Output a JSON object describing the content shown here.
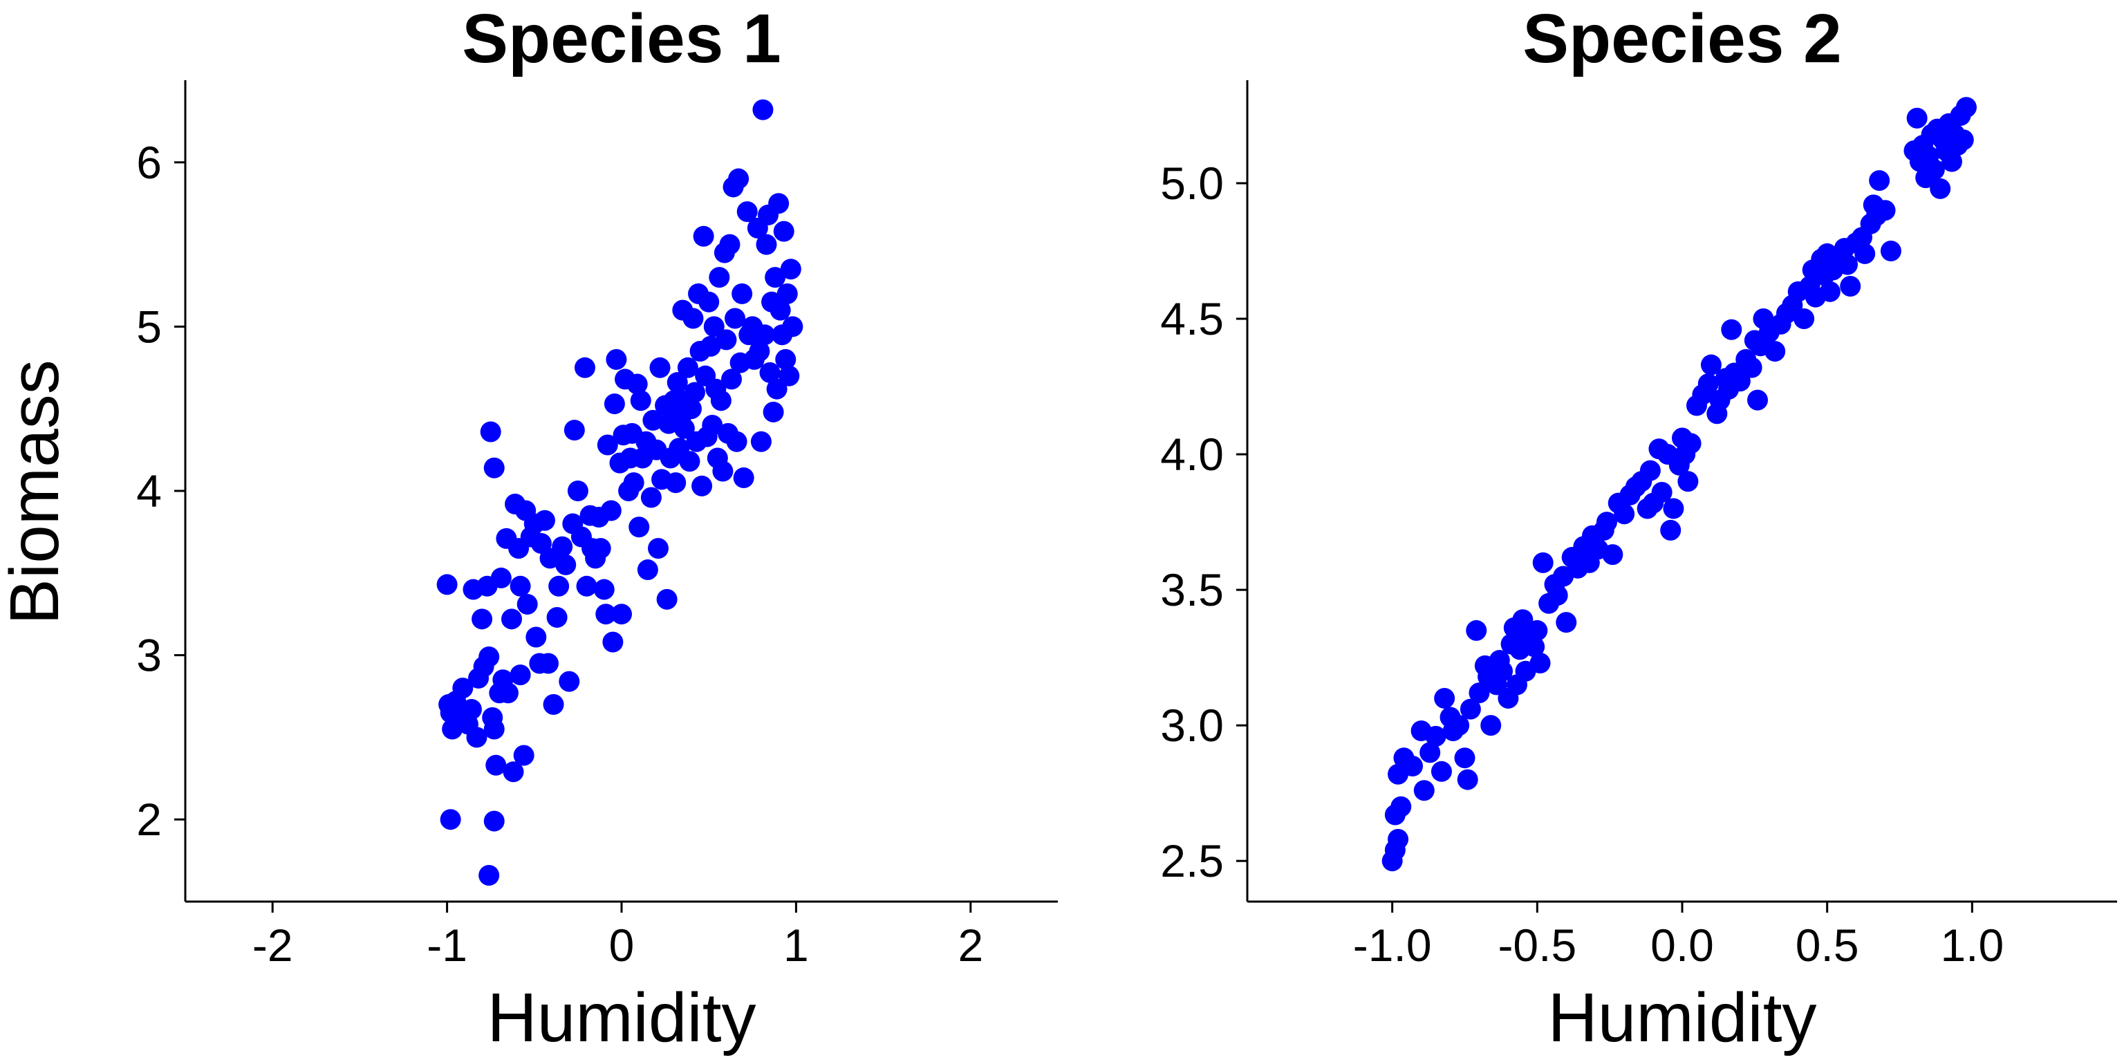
{
  "figure": {
    "ylabel": "Biomass"
  },
  "chart_data": [
    {
      "type": "scatter",
      "title": "Species 1",
      "xlabel": "Humidity",
      "ylabel": "Biomass",
      "xlim": [
        -2.5,
        2.5
      ],
      "ylim": [
        1.5,
        6.5
      ],
      "xticks": [
        -2,
        -1,
        0,
        1,
        2
      ],
      "xtick_labels": [
        "-2",
        "-1",
        "0",
        "1",
        "2"
      ],
      "yticks": [
        2,
        3,
        4,
        5,
        6
      ],
      "ytick_labels": [
        "2",
        "3",
        "4",
        "5",
        "6"
      ],
      "grid": false,
      "marker_color": "#0000ff",
      "points": [
        [
          -1.0,
          3.43
        ],
        [
          -0.99,
          2.7
        ],
        [
          -0.98,
          2.65
        ],
        [
          -0.97,
          2.55
        ],
        [
          -0.95,
          2.72
        ],
        [
          -0.93,
          2.62
        ],
        [
          -0.91,
          2.8
        ],
        [
          -0.88,
          2.58
        ],
        [
          -0.86,
          2.67
        ],
        [
          -0.85,
          3.4
        ],
        [
          -0.83,
          2.5
        ],
        [
          -0.82,
          2.86
        ],
        [
          -0.8,
          3.22
        ],
        [
          -0.79,
          2.93
        ],
        [
          -0.77,
          3.42
        ],
        [
          -0.76,
          2.99
        ],
        [
          -0.74,
          2.62
        ],
        [
          -0.73,
          2.55
        ],
        [
          -0.72,
          2.33
        ],
        [
          -0.7,
          2.77
        ],
        [
          -0.69,
          3.47
        ],
        [
          -0.68,
          2.85
        ],
        [
          -0.66,
          3.71
        ],
        [
          -0.65,
          2.77
        ],
        [
          -0.63,
          3.22
        ],
        [
          -0.62,
          2.29
        ],
        [
          -0.61,
          3.92
        ],
        [
          -0.59,
          3.65
        ],
        [
          -0.58,
          2.88
        ],
        [
          -0.56,
          2.39
        ],
        [
          -0.55,
          3.88
        ],
        [
          -0.54,
          3.31
        ],
        [
          -0.52,
          3.72
        ],
        [
          -0.5,
          3.8
        ],
        [
          -0.49,
          3.11
        ],
        [
          -0.47,
          2.95
        ],
        [
          -0.46,
          3.68
        ],
        [
          -0.44,
          3.82
        ],
        [
          -0.42,
          2.95
        ],
        [
          -0.41,
          3.59
        ],
        [
          -0.39,
          2.7
        ],
        [
          -0.37,
          3.23
        ],
        [
          -0.36,
          3.42
        ],
        [
          -0.34,
          3.66
        ],
        [
          -0.32,
          3.55
        ],
        [
          -0.3,
          2.84
        ],
        [
          -0.28,
          3.8
        ],
        [
          -0.27,
          4.37
        ],
        [
          -0.25,
          4.0
        ],
        [
          -0.23,
          3.72
        ],
        [
          -0.21,
          4.75
        ],
        [
          -0.2,
          3.42
        ],
        [
          -0.18,
          3.85
        ],
        [
          -0.17,
          3.65
        ],
        [
          -0.15,
          3.59
        ],
        [
          -0.13,
          3.84
        ],
        [
          -0.12,
          3.65
        ],
        [
          -0.1,
          3.4
        ],
        [
          -0.09,
          3.25
        ],
        [
          -0.08,
          4.28
        ],
        [
          -0.06,
          3.88
        ],
        [
          -0.05,
          3.08
        ],
        [
          -0.04,
          4.53
        ],
        [
          -0.03,
          4.8
        ],
        [
          -0.01,
          4.17
        ],
        [
          0.0,
          3.25
        ],
        [
          0.01,
          4.34
        ],
        [
          0.02,
          4.68
        ],
        [
          0.04,
          4.0
        ],
        [
          0.05,
          4.2
        ],
        [
          0.06,
          4.35
        ],
        [
          0.07,
          4.05
        ],
        [
          0.09,
          4.65
        ],
        [
          0.1,
          3.78
        ],
        [
          0.11,
          4.55
        ],
        [
          0.12,
          4.2
        ],
        [
          0.14,
          4.3
        ],
        [
          0.15,
          3.52
        ],
        [
          0.17,
          3.96
        ],
        [
          0.18,
          4.43
        ],
        [
          0.2,
          4.25
        ],
        [
          0.21,
          3.65
        ],
        [
          0.22,
          4.75
        ],
        [
          0.23,
          4.07
        ],
        [
          0.25,
          4.52
        ],
        [
          0.26,
          3.34
        ],
        [
          0.27,
          4.41
        ],
        [
          0.28,
          4.2
        ],
        [
          0.3,
          4.55
        ],
        [
          0.31,
          4.05
        ],
        [
          0.32,
          4.66
        ],
        [
          0.33,
          4.26
        ],
        [
          0.34,
          4.45
        ],
        [
          0.35,
          5.1
        ],
        [
          0.36,
          4.38
        ],
        [
          0.37,
          4.55
        ],
        [
          0.38,
          4.75
        ],
        [
          0.39,
          4.18
        ],
        [
          0.4,
          4.5
        ],
        [
          0.41,
          5.05
        ],
        [
          0.42,
          4.6
        ],
        [
          0.43,
          4.3
        ],
        [
          0.44,
          5.2
        ],
        [
          0.45,
          4.85
        ],
        [
          0.46,
          4.03
        ],
        [
          0.47,
          5.55
        ],
        [
          0.48,
          4.7
        ],
        [
          0.49,
          4.33
        ],
        [
          0.5,
          5.15
        ],
        [
          0.51,
          4.88
        ],
        [
          0.52,
          4.4
        ],
        [
          0.53,
          5.0
        ],
        [
          0.54,
          4.62
        ],
        [
          0.55,
          4.2
        ],
        [
          0.56,
          5.3
        ],
        [
          0.57,
          4.55
        ],
        [
          0.58,
          4.12
        ],
        [
          0.59,
          5.45
        ],
        [
          0.6,
          4.92
        ],
        [
          0.61,
          4.35
        ],
        [
          0.62,
          5.5
        ],
        [
          0.63,
          4.68
        ],
        [
          0.64,
          5.85
        ],
        [
          0.65,
          5.05
        ],
        [
          0.66,
          4.3
        ],
        [
          0.67,
          5.9
        ],
        [
          0.68,
          4.78
        ],
        [
          0.69,
          5.2
        ],
        [
          0.7,
          4.08
        ],
        [
          0.72,
          5.7
        ],
        [
          0.73,
          4.95
        ],
        [
          0.75,
          5.0
        ],
        [
          0.76,
          4.8
        ],
        [
          0.78,
          5.6
        ],
        [
          0.79,
          4.85
        ],
        [
          0.8,
          4.3
        ],
        [
          0.81,
          6.32
        ],
        [
          0.82,
          4.95
        ],
        [
          0.83,
          5.5
        ],
        [
          0.84,
          5.68
        ],
        [
          0.85,
          4.72
        ],
        [
          0.86,
          5.15
        ],
        [
          0.87,
          4.48
        ],
        [
          0.88,
          5.3
        ],
        [
          0.89,
          4.62
        ],
        [
          0.9,
          5.75
        ],
        [
          0.91,
          5.1
        ],
        [
          0.92,
          4.95
        ],
        [
          0.93,
          5.58
        ],
        [
          0.94,
          4.8
        ],
        [
          0.95,
          5.2
        ],
        [
          0.96,
          4.7
        ],
        [
          0.97,
          5.35
        ],
        [
          0.98,
          5.0
        ],
        [
          -0.98,
          2.0
        ],
        [
          -0.73,
          1.99
        ],
        [
          -0.76,
          1.66
        ],
        [
          -0.75,
          4.36
        ],
        [
          -0.73,
          4.14
        ],
        [
          -0.58,
          3.42
        ]
      ]
    },
    {
      "type": "scatter",
      "title": "Species 2",
      "xlabel": "Humidity",
      "ylabel": "",
      "xlim": [
        -1.5,
        1.5
      ],
      "ylim": [
        2.35,
        5.38
      ],
      "xticks": [
        -1.0,
        -0.5,
        0.0,
        0.5,
        1.0
      ],
      "xtick_labels": [
        "-1.0",
        "-0.5",
        "0.0",
        "0.5",
        "1.0"
      ],
      "yticks": [
        2.5,
        3.0,
        3.5,
        4.0,
        4.5,
        5.0
      ],
      "ytick_labels": [
        "2.5",
        "3.0",
        "3.5",
        "4.0",
        "4.5",
        "5.0"
      ],
      "grid": false,
      "marker_color": "#0000ff",
      "points": [
        [
          -1.0,
          2.5
        ],
        [
          -0.99,
          2.54
        ],
        [
          -0.99,
          2.67
        ],
        [
          -0.98,
          2.58
        ],
        [
          -0.98,
          2.82
        ],
        [
          -0.97,
          2.7
        ],
        [
          -0.96,
          2.88
        ],
        [
          -0.93,
          2.85
        ],
        [
          -0.9,
          2.98
        ],
        [
          -0.89,
          2.76
        ],
        [
          -0.87,
          2.9
        ],
        [
          -0.85,
          2.96
        ],
        [
          -0.83,
          2.83
        ],
        [
          -0.82,
          3.1
        ],
        [
          -0.8,
          3.03
        ],
        [
          -0.79,
          2.98
        ],
        [
          -0.77,
          3.0
        ],
        [
          -0.75,
          2.88
        ],
        [
          -0.74,
          2.8
        ],
        [
          -0.73,
          3.06
        ],
        [
          -0.71,
          3.35
        ],
        [
          -0.7,
          3.12
        ],
        [
          -0.68,
          3.22
        ],
        [
          -0.67,
          3.18
        ],
        [
          -0.66,
          3.0
        ],
        [
          -0.64,
          3.15
        ],
        [
          -0.63,
          3.24
        ],
        [
          -0.62,
          3.2
        ],
        [
          -0.6,
          3.1
        ],
        [
          -0.59,
          3.3
        ],
        [
          -0.58,
          3.36
        ],
        [
          -0.57,
          3.15
        ],
        [
          -0.56,
          3.28
        ],
        [
          -0.55,
          3.39
        ],
        [
          -0.54,
          3.2
        ],
        [
          -0.53,
          3.32
        ],
        [
          -0.51,
          3.29
        ],
        [
          -0.5,
          3.35
        ],
        [
          -0.49,
          3.23
        ],
        [
          -0.48,
          3.6
        ],
        [
          -0.46,
          3.45
        ],
        [
          -0.44,
          3.52
        ],
        [
          -0.43,
          3.48
        ],
        [
          -0.41,
          3.55
        ],
        [
          -0.4,
          3.38
        ],
        [
          -0.38,
          3.62
        ],
        [
          -0.36,
          3.58
        ],
        [
          -0.34,
          3.66
        ],
        [
          -0.32,
          3.6
        ],
        [
          -0.31,
          3.7
        ],
        [
          -0.29,
          3.65
        ],
        [
          -0.27,
          3.72
        ],
        [
          -0.26,
          3.75
        ],
        [
          -0.24,
          3.63
        ],
        [
          -0.22,
          3.82
        ],
        [
          -0.2,
          3.78
        ],
        [
          -0.18,
          3.85
        ],
        [
          -0.16,
          3.88
        ],
        [
          -0.14,
          3.9
        ],
        [
          -0.12,
          3.8
        ],
        [
          -0.11,
          3.94
        ],
        [
          -0.1,
          3.82
        ],
        [
          -0.08,
          4.02
        ],
        [
          -0.07,
          3.86
        ],
        [
          -0.05,
          4.0
        ],
        [
          -0.04,
          3.72
        ],
        [
          -0.03,
          3.8
        ],
        [
          -0.01,
          3.96
        ],
        [
          0.0,
          4.06
        ],
        [
          0.01,
          4.0
        ],
        [
          0.02,
          3.9
        ],
        [
          0.03,
          4.04
        ],
        [
          0.05,
          4.18
        ],
        [
          0.07,
          4.22
        ],
        [
          0.09,
          4.26
        ],
        [
          0.1,
          4.33
        ],
        [
          0.12,
          4.15
        ],
        [
          0.13,
          4.2
        ],
        [
          0.15,
          4.28
        ],
        [
          0.16,
          4.24
        ],
        [
          0.17,
          4.46
        ],
        [
          0.18,
          4.3
        ],
        [
          0.2,
          4.27
        ],
        [
          0.22,
          4.35
        ],
        [
          0.24,
          4.32
        ],
        [
          0.25,
          4.42
        ],
        [
          0.26,
          4.2
        ],
        [
          0.27,
          4.4
        ],
        [
          0.28,
          4.5
        ],
        [
          0.3,
          4.45
        ],
        [
          0.32,
          4.38
        ],
        [
          0.34,
          4.48
        ],
        [
          0.36,
          4.52
        ],
        [
          0.38,
          4.55
        ],
        [
          0.4,
          4.6
        ],
        [
          0.42,
          4.5
        ],
        [
          0.44,
          4.62
        ],
        [
          0.45,
          4.68
        ],
        [
          0.46,
          4.58
        ],
        [
          0.48,
          4.72
        ],
        [
          0.49,
          4.66
        ],
        [
          0.5,
          4.74
        ],
        [
          0.51,
          4.6
        ],
        [
          0.52,
          4.68
        ],
        [
          0.54,
          4.72
        ],
        [
          0.56,
          4.76
        ],
        [
          0.57,
          4.7
        ],
        [
          0.58,
          4.62
        ],
        [
          0.6,
          4.78
        ],
        [
          0.62,
          4.8
        ],
        [
          0.63,
          4.74
        ],
        [
          0.65,
          4.85
        ],
        [
          0.66,
          4.92
        ],
        [
          0.67,
          4.88
        ],
        [
          0.68,
          5.01
        ],
        [
          0.7,
          4.9
        ],
        [
          0.72,
          4.75
        ],
        [
          0.8,
          5.12
        ],
        [
          0.81,
          5.24
        ],
        [
          0.82,
          5.08
        ],
        [
          0.83,
          5.14
        ],
        [
          0.84,
          5.02
        ],
        [
          0.85,
          5.1
        ],
        [
          0.86,
          5.18
        ],
        [
          0.87,
          5.05
        ],
        [
          0.88,
          5.2
        ],
        [
          0.89,
          4.98
        ],
        [
          0.9,
          5.16
        ],
        [
          0.91,
          5.12
        ],
        [
          0.92,
          5.22
        ],
        [
          0.93,
          5.08
        ],
        [
          0.94,
          5.18
        ],
        [
          0.95,
          5.14
        ],
        [
          0.96,
          5.25
        ],
        [
          0.97,
          5.16
        ],
        [
          0.98,
          5.28
        ]
      ]
    }
  ]
}
